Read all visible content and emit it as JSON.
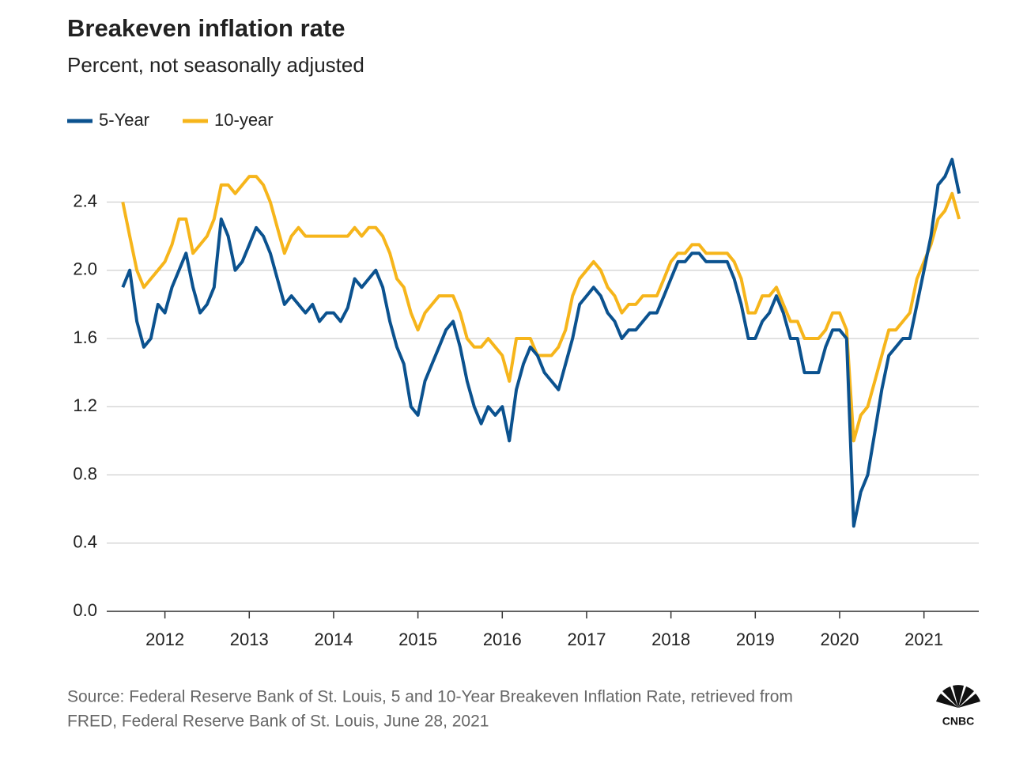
{
  "chart_data": {
    "type": "line",
    "title": "Breakeven inflation rate",
    "subtitle": "Percent, not seasonally adjusted",
    "source": [
      "Source: Federal Reserve Bank of St. Louis, 5 and 10-Year Breakeven Inflation Rate, retrieved from",
      "FRED, Federal Reserve Bank of St. Louis, June 28, 2021"
    ],
    "logo": "CNBC",
    "x": [
      2011.5,
      2011.583,
      2011.667,
      2011.75,
      2011.833,
      2011.917,
      2012,
      2012.083,
      2012.167,
      2012.25,
      2012.333,
      2012.417,
      2012.5,
      2012.583,
      2012.667,
      2012.75,
      2012.833,
      2012.917,
      2013,
      2013.083,
      2013.167,
      2013.25,
      2013.333,
      2013.417,
      2013.5,
      2013.583,
      2013.667,
      2013.75,
      2013.833,
      2013.917,
      2014,
      2014.083,
      2014.167,
      2014.25,
      2014.333,
      2014.417,
      2014.5,
      2014.583,
      2014.667,
      2014.75,
      2014.833,
      2014.917,
      2015,
      2015.083,
      2015.167,
      2015.25,
      2015.333,
      2015.417,
      2015.5,
      2015.583,
      2015.667,
      2015.75,
      2015.833,
      2015.917,
      2016,
      2016.083,
      2016.167,
      2016.25,
      2016.333,
      2016.417,
      2016.5,
      2016.583,
      2016.667,
      2016.75,
      2016.833,
      2016.917,
      2017,
      2017.083,
      2017.167,
      2017.25,
      2017.333,
      2017.417,
      2017.5,
      2017.583,
      2017.667,
      2017.75,
      2017.833,
      2017.917,
      2018,
      2018.083,
      2018.167,
      2018.25,
      2018.333,
      2018.417,
      2018.5,
      2018.583,
      2018.667,
      2018.75,
      2018.833,
      2018.917,
      2019,
      2019.083,
      2019.167,
      2019.25,
      2019.333,
      2019.417,
      2019.5,
      2019.583,
      2019.667,
      2019.75,
      2019.833,
      2019.917,
      2020,
      2020.083,
      2020.167,
      2020.25,
      2020.333,
      2020.417,
      2020.5,
      2020.583,
      2020.667,
      2020.75,
      2020.833,
      2020.917,
      2021,
      2021.083,
      2021.167,
      2021.25,
      2021.333,
      2021.417
    ],
    "series": [
      {
        "name": "5-Year",
        "color": "#0b528f",
        "values": [
          1.9,
          2.0,
          1.7,
          1.55,
          1.6,
          1.8,
          1.75,
          1.9,
          2.0,
          2.1,
          1.9,
          1.75,
          1.8,
          1.9,
          2.3,
          2.2,
          2.0,
          2.05,
          2.15,
          2.25,
          2.2,
          2.1,
          1.95,
          1.8,
          1.85,
          1.8,
          1.75,
          1.8,
          1.7,
          1.75,
          1.75,
          1.7,
          1.78,
          1.95,
          1.9,
          1.95,
          2.0,
          1.9,
          1.7,
          1.55,
          1.45,
          1.2,
          1.15,
          1.35,
          1.45,
          1.55,
          1.65,
          1.7,
          1.55,
          1.35,
          1.2,
          1.1,
          1.2,
          1.15,
          1.2,
          1.0,
          1.3,
          1.45,
          1.55,
          1.5,
          1.4,
          1.35,
          1.3,
          1.45,
          1.6,
          1.8,
          1.85,
          1.9,
          1.85,
          1.75,
          1.7,
          1.6,
          1.65,
          1.65,
          1.7,
          1.75,
          1.75,
          1.85,
          1.95,
          2.05,
          2.05,
          2.1,
          2.1,
          2.05,
          2.05,
          2.05,
          2.05,
          1.95,
          1.8,
          1.6,
          1.6,
          1.7,
          1.75,
          1.85,
          1.75,
          1.6,
          1.6,
          1.4,
          1.4,
          1.4,
          1.55,
          1.65,
          1.65,
          1.6,
          0.5,
          0.7,
          0.8,
          1.05,
          1.3,
          1.5,
          1.55,
          1.6,
          1.6,
          1.8,
          2.0,
          2.2,
          2.5,
          2.55,
          2.65,
          2.45
        ]
      },
      {
        "name": "10-year",
        "color": "#f6b51b",
        "values": [
          2.4,
          2.2,
          2.0,
          1.9,
          1.95,
          2.0,
          2.05,
          2.15,
          2.3,
          2.3,
          2.1,
          2.15,
          2.2,
          2.3,
          2.5,
          2.5,
          2.45,
          2.5,
          2.55,
          2.55,
          2.5,
          2.4,
          2.25,
          2.1,
          2.2,
          2.25,
          2.2,
          2.2,
          2.2,
          2.2,
          2.2,
          2.2,
          2.2,
          2.25,
          2.2,
          2.25,
          2.25,
          2.2,
          2.1,
          1.95,
          1.9,
          1.75,
          1.65,
          1.75,
          1.8,
          1.85,
          1.85,
          1.85,
          1.75,
          1.6,
          1.55,
          1.55,
          1.6,
          1.55,
          1.5,
          1.35,
          1.6,
          1.6,
          1.6,
          1.5,
          1.5,
          1.5,
          1.55,
          1.65,
          1.85,
          1.95,
          2.0,
          2.05,
          2.0,
          1.9,
          1.85,
          1.75,
          1.8,
          1.8,
          1.85,
          1.85,
          1.85,
          1.95,
          2.05,
          2.1,
          2.1,
          2.15,
          2.15,
          2.1,
          2.1,
          2.1,
          2.1,
          2.05,
          1.95,
          1.75,
          1.75,
          1.85,
          1.85,
          1.9,
          1.8,
          1.7,
          1.7,
          1.6,
          1.6,
          1.6,
          1.65,
          1.75,
          1.75,
          1.65,
          1.0,
          1.15,
          1.2,
          1.35,
          1.5,
          1.65,
          1.65,
          1.7,
          1.75,
          1.95,
          2.05,
          2.15,
          2.3,
          2.35,
          2.45,
          2.3
        ]
      }
    ],
    "xlim": [
      2011.31,
      2021.65
    ],
    "xticks": [
      2012,
      2013,
      2014,
      2015,
      2016,
      2017,
      2018,
      2019,
      2020,
      2021
    ],
    "ylim": [
      0,
      2.75
    ],
    "yticks": [
      {
        "value": 0,
        "label": "0.0"
      },
      0.4,
      0.8,
      1.2,
      1.6,
      {
        "value": 2,
        "label": "2.0"
      },
      2.4
    ],
    "grid": true
  }
}
